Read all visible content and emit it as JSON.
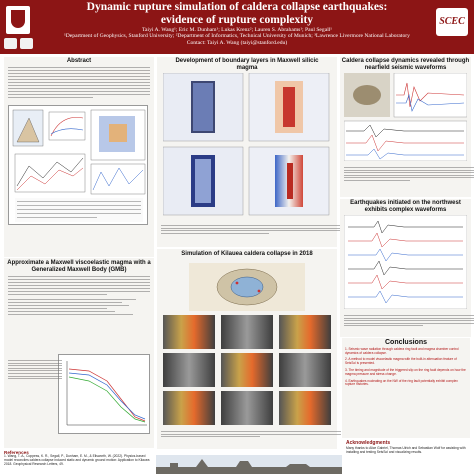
{
  "header": {
    "title_line1": "Dynamic rupture simulation of caldera collapse earthquakes:",
    "title_line2": "evidence of rupture complexity",
    "authors_line1": "Taiyi A. Wang¹; Eric M. Dunham¹; Lukas Krenz²; Lauren S. Abrahams¹; Paul Segall¹",
    "authors_line2": "¹Department of Geophysics, Stanford University; ²Department of Informatics, Technical University of Munich; ³Lawrence Livermore National Laboratory",
    "authors_line3": "Contact: Taiyi A. Wang (taiyi@stanford.edu)",
    "scec_logo": "SCEC",
    "logo_left_icon": "stanford-tree-logo"
  },
  "sections": {
    "abstract_title": "Abstract",
    "boundary_title": "Development of boundary layers in Maxwell silicic magma",
    "nearfield_title": "Caldera collapse dynamics revealed through nearfield seismic waveforms",
    "gmb_title": "Approximate a Maxwell viscoelastic magma with a Generalized Maxwell Body (GMB)",
    "kilauea_title": "Simulation of Kilauea caldera collapse in 2018",
    "northwest_title": "Earthquakes initiated on the northwest exhibits complex waveforms",
    "conclusions_title": "Conclusions",
    "references_title": "References",
    "ack_title": "Acknowledgments"
  },
  "conclusions": [
    "1. Seismic wave radiation through caldera ring fault and magma chamber control dynamics of caldera collapse.",
    "2. A method to model viscoelastic magma with the built-in attenuation feature of SeisSol is presented.",
    "3. The timing and magnitude of the triggered slip on the ring fault depends on how the magma pressure and stress change.",
    "4. Earthquakes nucleating on the NW of the ring fault potentially exhibit complex rupture histories."
  ],
  "references": {
    "text": "1. Wang, T. A., Coppess, K. R., Segall, P., Dunham, E. M., & Ellsworth, W. (2022). Physics-based model reconciles caldera collapse induced static and dynamic ground motion: Application to Kilauea 2018. Geophysical Research Letters, 49."
  },
  "acknowledgments": {
    "text": "Many thanks to Alice Gabriel, Thomas Ulrich and Sebastian Wolf for assisting with installing and testing SeisSol and visualizing results."
  },
  "colors": {
    "header_bg": "#8c1515",
    "panel_bg": "#f5f4f1",
    "accent_red": "#b01010"
  }
}
